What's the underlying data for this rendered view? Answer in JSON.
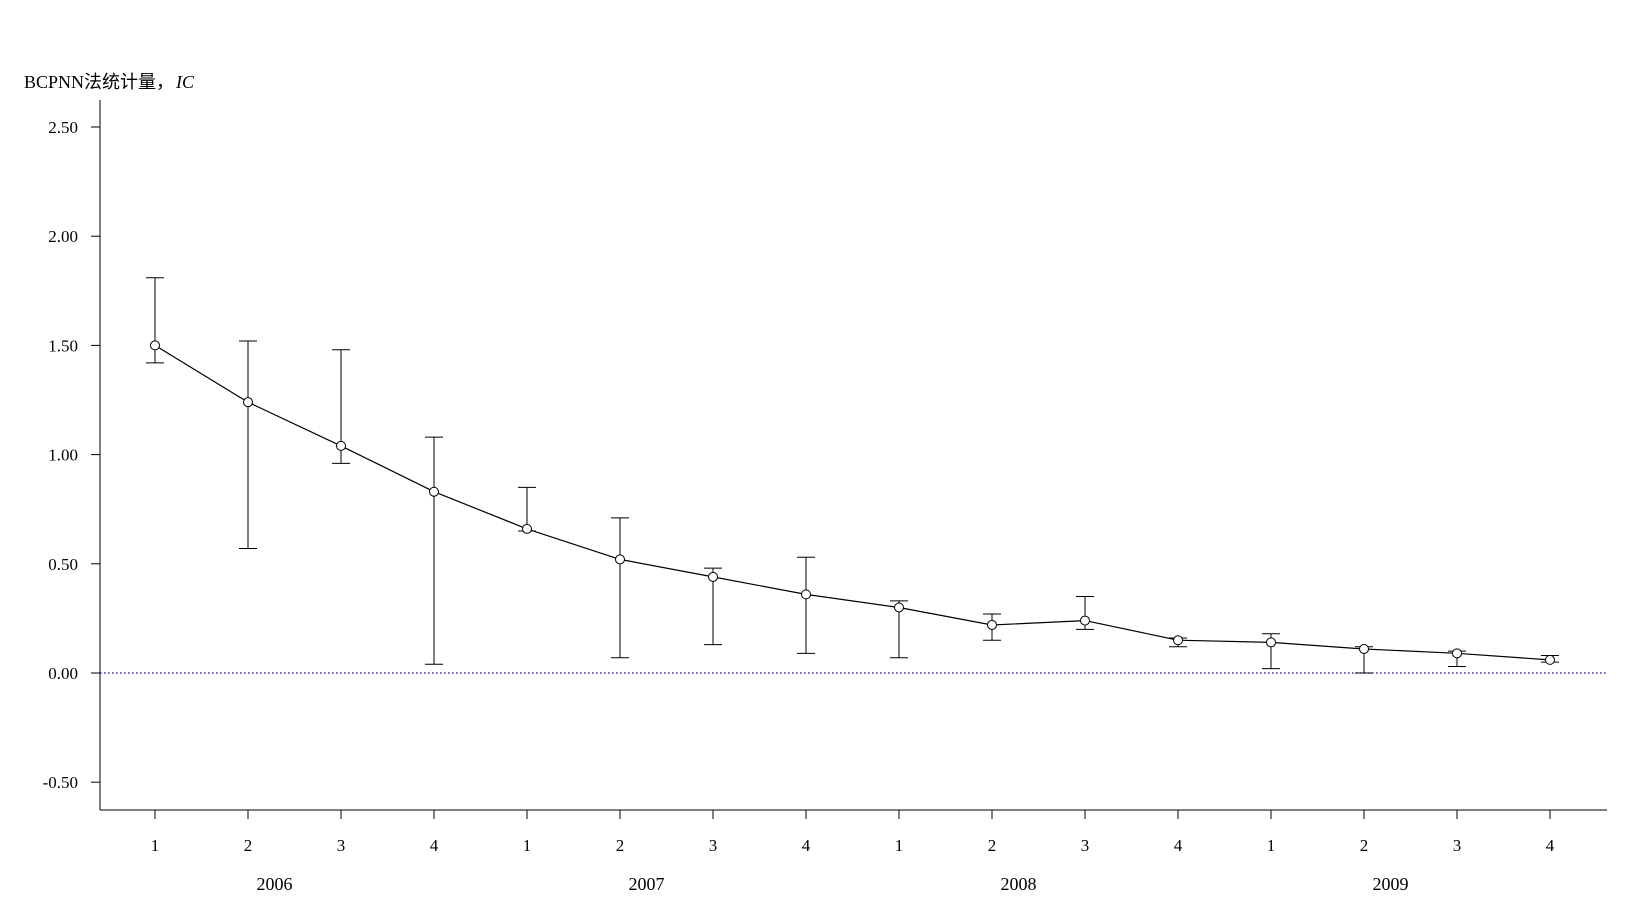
{
  "chart_data": {
    "type": "line",
    "ylabel": "BCPNN法统计量，",
    "ylabel_symbol": "IC",
    "ylim": [
      -0.62,
      2.6
    ],
    "yticks": [
      "2.50",
      "2.00",
      "1.50",
      "1.00",
      "0.50",
      "0.00",
      "-0.50"
    ],
    "ytick_values": [
      2.5,
      2.0,
      1.5,
      1.0,
      0.5,
      0.0,
      -0.5
    ],
    "reference_line": {
      "y": 0.0,
      "color": "#0000cc",
      "style": "dotted"
    },
    "quarters": [
      "1",
      "2",
      "3",
      "4",
      "1",
      "2",
      "3",
      "4",
      "1",
      "2",
      "3",
      "4",
      "1",
      "2",
      "3",
      "4"
    ],
    "years": [
      "2006",
      "2007",
      "2008",
      "2009"
    ],
    "series": [
      {
        "values": [
          1.5,
          1.24,
          1.04,
          0.83,
          0.66,
          0.52,
          0.44,
          0.36,
          0.3,
          0.22,
          0.24,
          0.15,
          0.14,
          0.11,
          0.09,
          0.06
        ],
        "lower": [
          1.42,
          0.57,
          0.96,
          0.04,
          0.65,
          0.07,
          0.13,
          0.09,
          0.07,
          0.15,
          0.2,
          0.12,
          0.02,
          0.0,
          0.03,
          0.05
        ],
        "upper": [
          1.81,
          1.52,
          1.48,
          1.08,
          0.85,
          0.71,
          0.48,
          0.53,
          0.33,
          0.27,
          0.35,
          0.16,
          0.18,
          0.12,
          0.1,
          0.08
        ]
      }
    ]
  }
}
